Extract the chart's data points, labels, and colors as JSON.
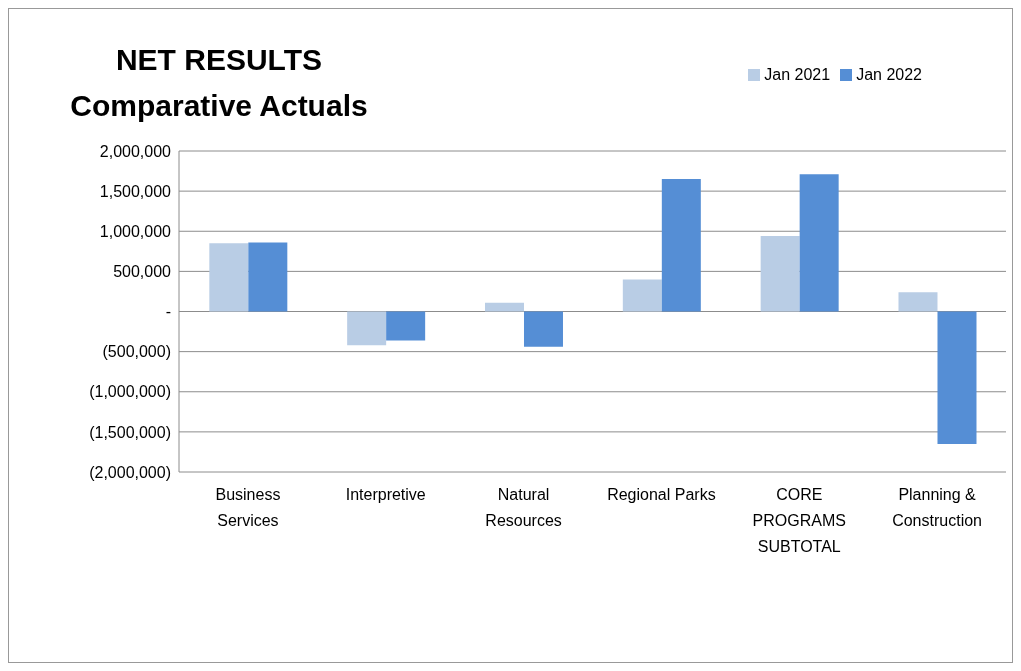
{
  "chart_data": {
    "type": "bar",
    "title": "NET RESULTS",
    "subtitle": "Comparative Actuals",
    "categories": [
      "Business Services",
      "Interpretive",
      "Natural Resources",
      "Regional Parks",
      "CORE PROGRAMS SUBTOTAL",
      "Planning & Construction"
    ],
    "series": [
      {
        "name": "Jan 2021",
        "color": "#b9cde5",
        "values": [
          850000,
          -420000,
          110000,
          400000,
          940000,
          240000
        ]
      },
      {
        "name": "Jan 2022",
        "color": "#558ed5",
        "values": [
          860000,
          -360000,
          -440000,
          1650000,
          1710000,
          -1650000
        ]
      }
    ],
    "ylim": [
      -2000000,
      2000000
    ],
    "yticks": [
      {
        "value": -2000000,
        "label": "(2,000,000)"
      },
      {
        "value": -1500000,
        "label": "(1,500,000)"
      },
      {
        "value": -1000000,
        "label": "(1,000,000)"
      },
      {
        "value": -500000,
        "label": "(500,000)"
      },
      {
        "value": 0,
        "label": "-"
      },
      {
        "value": 500000,
        "label": "500,000"
      },
      {
        "value": 1000000,
        "label": "1,000,000"
      },
      {
        "value": 1500000,
        "label": "1,500,000"
      },
      {
        "value": 2000000,
        "label": "2,000,000"
      }
    ],
    "grid": "y",
    "legend": "top right"
  }
}
